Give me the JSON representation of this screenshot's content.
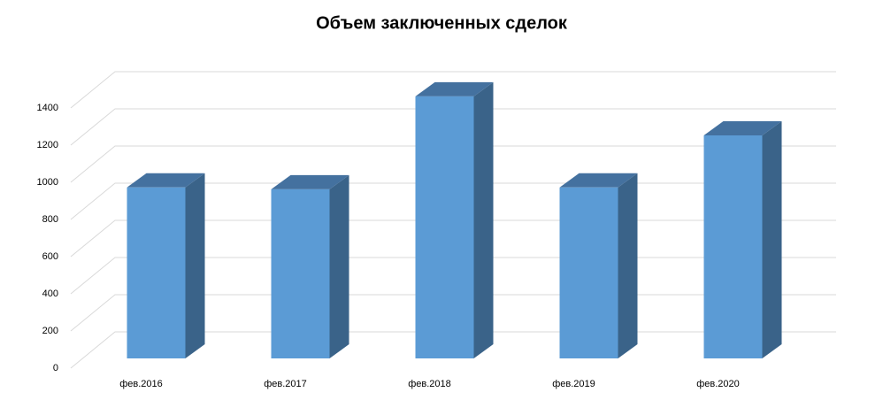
{
  "chart_data": {
    "type": "bar3d",
    "title": "Объем заключенных сделок",
    "categories": [
      "фев.2016",
      "фев.2017",
      "фев.2018",
      "фев.2019",
      "фев.2020"
    ],
    "values": [
      920,
      910,
      1410,
      920,
      1200
    ],
    "color": "#5b9bd5",
    "ylim": [
      0,
      1400
    ],
    "yticks": [
      0,
      200,
      400,
      600,
      800,
      1000,
      1200,
      1400
    ],
    "grid": true
  }
}
